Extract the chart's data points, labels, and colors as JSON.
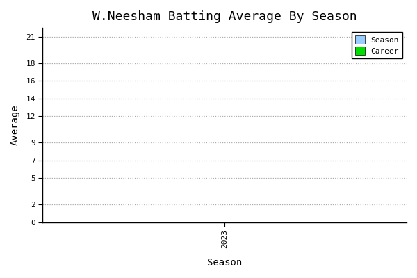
{
  "title": "W.Neesham Batting Average By Season",
  "xlabel": "Season",
  "ylabel": "Average",
  "xlim": [
    2022.5,
    2023.5
  ],
  "ylim": [
    0,
    22
  ],
  "yticks": [
    0,
    2,
    5,
    7,
    9,
    12,
    14,
    16,
    18,
    21
  ],
  "xticks": [
    2023
  ],
  "xtick_labels": [
    "2023"
  ],
  "season_color": "#99CCFF",
  "career_color": "#00DD00",
  "bg_color": "#FFFFFF",
  "plot_bg_color": "#FFFFFF",
  "grid_color": "#AAAAAA",
  "title_fontsize": 13,
  "label_fontsize": 10,
  "tick_fontsize": 8,
  "legend_labels": [
    "Season",
    "Career"
  ],
  "font_family": "monospace"
}
